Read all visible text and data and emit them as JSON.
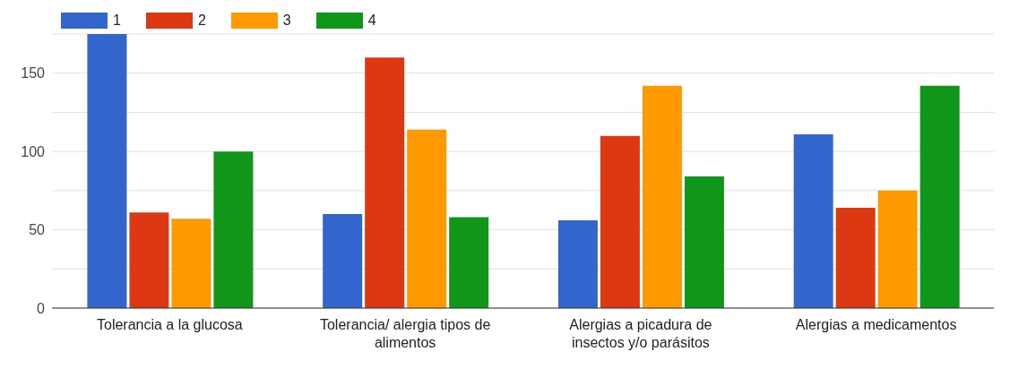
{
  "chart_data": {
    "type": "bar",
    "categories": [
      "Tolerancia a la glucosa",
      "Tolerancia/ alergia tipos de alimentos",
      "Alergias a picadura de insectos y/o parásitos",
      "Alergias a medicamentos"
    ],
    "series": [
      {
        "name": "1",
        "color": "#3366cc",
        "values": [
          175,
          60,
          56,
          111
        ]
      },
      {
        "name": "2",
        "color": "#dc3912",
        "values": [
          61,
          160,
          110,
          64
        ]
      },
      {
        "name": "3",
        "color": "#ff9900",
        "values": [
          57,
          114,
          142,
          75
        ]
      },
      {
        "name": "4",
        "color": "#109618",
        "values": [
          100,
          58,
          84,
          142
        ]
      }
    ],
    "ylim": [
      0,
      175
    ],
    "yticks": [
      0,
      {
        "value": 25,
        "label": null
      },
      50,
      {
        "value": 75,
        "label": null
      },
      100,
      {
        "value": 125,
        "label": null
      },
      150,
      {
        "value": 175,
        "label": null
      }
    ],
    "grid": "y",
    "legend": "top left"
  }
}
